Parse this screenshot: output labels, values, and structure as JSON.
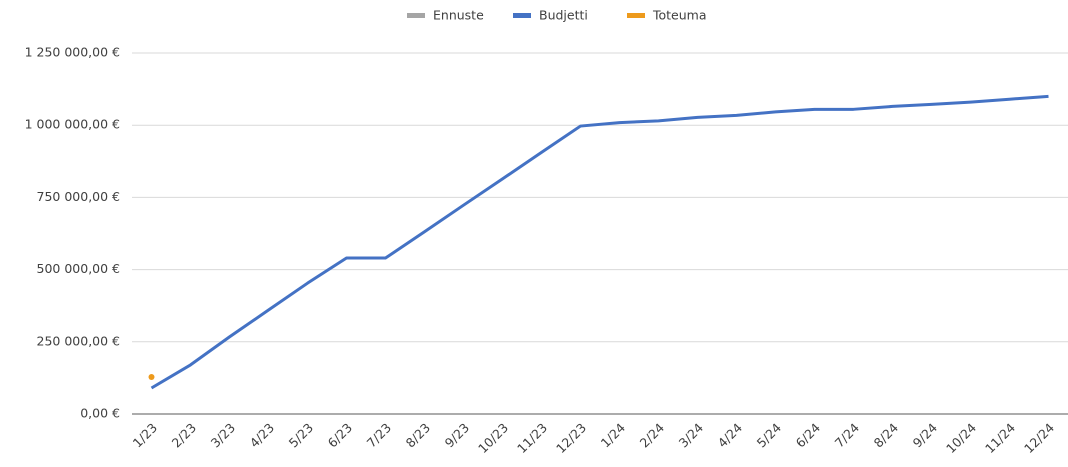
{
  "chart_data": {
    "type": "line",
    "categories": [
      "1/23",
      "2/23",
      "3/23",
      "4/23",
      "5/23",
      "6/23",
      "7/23",
      "8/23",
      "9/23",
      "10/23",
      "11/23",
      "12/23",
      "1/24",
      "2/24",
      "3/24",
      "4/24",
      "5/24",
      "6/24",
      "7/24",
      "8/24",
      "9/24",
      "10/24",
      "11/24",
      "12/24"
    ],
    "series": [
      {
        "name": "Ennuste",
        "color": "#a5a5a5",
        "values": [
          null,
          null,
          null,
          null,
          null,
          null,
          null,
          null,
          null,
          null,
          null,
          null,
          null,
          null,
          null,
          null,
          null,
          null,
          null,
          null,
          null,
          null,
          null,
          null
        ]
      },
      {
        "name": "Budjetti",
        "color": "#4472c4",
        "values": [
          90000,
          170000,
          267000,
          360000,
          453000,
          540000,
          540000,
          631000,
          723000,
          814000,
          906000,
          997000,
          1009000,
          1015000,
          1027000,
          1034000,
          1046000,
          1055000,
          1055000,
          1065000,
          1072000,
          1080000,
          1090000,
          1100000
        ]
      },
      {
        "name": "Toteuma",
        "color": "#ed9a1c",
        "values": [
          128000,
          null,
          null,
          null,
          null,
          null,
          null,
          null,
          null,
          null,
          null,
          null,
          null,
          null,
          null,
          null,
          null,
          null,
          null,
          null,
          null,
          null,
          null,
          null
        ]
      }
    ],
    "ylim": [
      0,
      1250000
    ],
    "yticks": [
      {
        "value": 0,
        "label": "0,00 €"
      },
      {
        "value": 250000,
        "label": "250 000,00 €"
      },
      {
        "value": 500000,
        "label": "500 000,00 €"
      },
      {
        "value": 750000,
        "label": "750 000,00 €"
      },
      {
        "value": 1000000,
        "label": "1 000 000,00 €"
      },
      {
        "value": 1250000,
        "label": "1 250 000,00 €"
      }
    ],
    "grid": true,
    "legend": "top"
  }
}
